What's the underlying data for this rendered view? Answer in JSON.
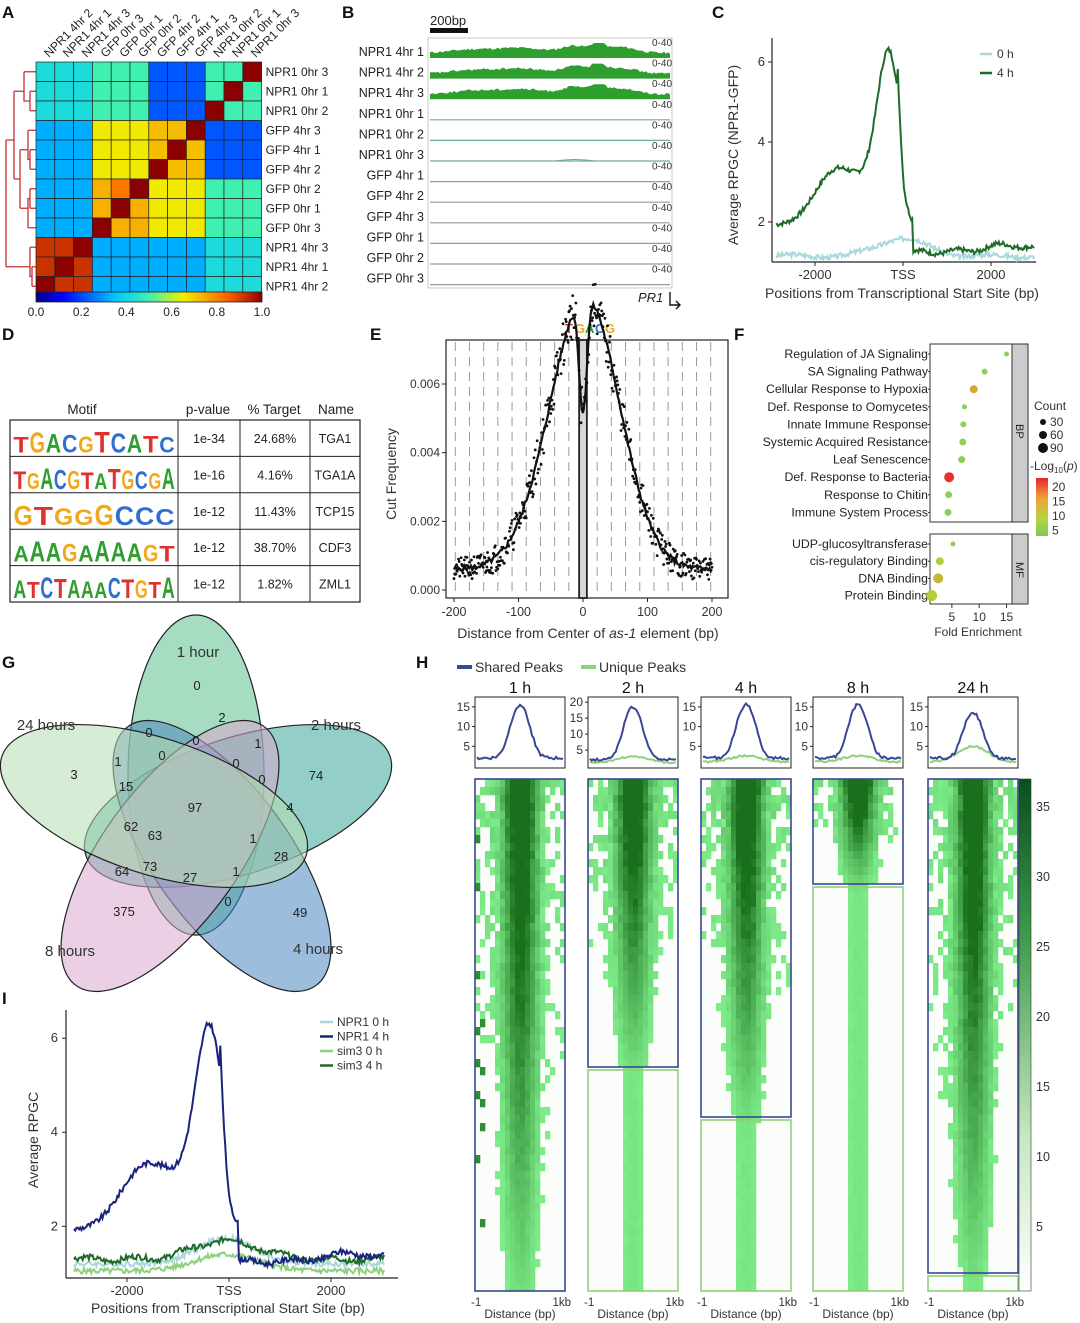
{
  "panel_letters": [
    "A",
    "B",
    "C",
    "D",
    "E",
    "F",
    "G",
    "H",
    "I"
  ],
  "panelA": {
    "samples": [
      "NPR1 0hr 3",
      "NPR1 0hr 1",
      "NPR1 0hr 2",
      "GFP 4hr 3",
      "GFP 4hr 1",
      "GFP 4hr 2",
      "GFP 0hr 2",
      "GFP 0hr 1",
      "GFP 0hr 3",
      "NPR1 4hr 3",
      "NPR1 4hr 1",
      "NPR1 4hr 2"
    ],
    "col_labels": [
      "NPR1 4hr 2",
      "NPR1 4hr 1",
      "NPR1 4hr 3",
      "GFP 0hr 3",
      "GFP 0hr 1",
      "GFP 0hr 2",
      "GFP 4hr 2",
      "GFP 4hr 1",
      "GFP 4hr 3",
      "NPR1 0hr 2",
      "NPR1 0hr 1",
      "NPR1 0hr 3"
    ],
    "colorbar_ticks": [
      "0.0",
      "0.2",
      "0.4",
      "0.6",
      "0.8",
      "1.0"
    ]
  },
  "panelB": {
    "scale_label": "200bp",
    "tracks": [
      "NPR1 4hr 1",
      "NPR1 4hr 2",
      "NPR1 4hr 3",
      "NPR1 0hr 1",
      "NPR1 0hr 2",
      "NPR1 0hr 3",
      "GFP 4hr 1",
      "GFP 4hr 2",
      "GFP 4hr 3",
      "GFP 0hr 1",
      "GFP 0hr 2",
      "GFP 0hr 3"
    ],
    "range_label": "0-40",
    "gene_label": "PR1"
  },
  "panelC": {
    "ylabel": "Average RPGC (NPR1-GFP)",
    "xlabel": "Positions from Transcriptional Start Site (bp)",
    "xticks": [
      "-2000",
      "TSS",
      "2000"
    ],
    "yticks": [
      "2",
      "4",
      "6"
    ],
    "legend": [
      "0 h",
      "4 h"
    ],
    "colors": {
      "zero": "#a8d8dc",
      "four": "#1f6b2a"
    }
  },
  "panelD": {
    "headers": [
      "Motif",
      "p-value",
      "% Target",
      "Name"
    ],
    "rows": [
      {
        "motif": "TGACGTCATC",
        "pvalue": "1e-34",
        "target": "24.68%",
        "name": "TGA1"
      },
      {
        "motif": "TGACGTATGCGA",
        "pvalue": "1e-16",
        "target": "4.16%",
        "name": "TGA1A"
      },
      {
        "motif": "GTGGGCCC",
        "pvalue": "1e-12",
        "target": "11.43%",
        "name": "TCP15"
      },
      {
        "motif": "AAAGAAAAGT",
        "pvalue": "1e-12",
        "target": "38.70%",
        "name": "CDF3"
      },
      {
        "motif": "ATCTAAACTGTA",
        "pvalue": "1e-12",
        "target": "1.82%",
        "name": "ZML1"
      }
    ]
  },
  "panelE": {
    "motif_label": "TGACG",
    "ylabel": "Cut Frequency",
    "xlabel_pre": "Distance from Center of ",
    "xlabel_em": "as-1",
    "xlabel_post": " element (bp)",
    "xticks": [
      "-200",
      "-100",
      "0",
      "100",
      "200"
    ],
    "yticks": [
      "0.000",
      "0.002",
      "0.004",
      "0.006"
    ]
  },
  "panelF": {
    "bp_terms": [
      "Regulation of JA Signaling",
      "SA Signaling Pathway",
      "Cellular Response to Hypoxia",
      "Def. Response to Oomycetes",
      "Innate Immune Response",
      "Systemic Acquired Resistance",
      "Leaf Senescence",
      "Def. Response to Bacteria",
      "Response to Chitin",
      "Immune System Process"
    ],
    "mf_terms": [
      "UDP-glucosyltransferase",
      "cis-regulatory Binding",
      "DNA Binding",
      "Protein Binding"
    ],
    "bp_label": "BP",
    "mf_label": "MF",
    "xlabel": "Fold Enrichment",
    "xticks": [
      "5",
      "10",
      "15"
    ],
    "count_title": "Count",
    "count_levels": [
      "30",
      "60",
      "90"
    ],
    "logp_title": "-Log10(p)",
    "logp_ticks": [
      "20",
      "15",
      "10",
      "5"
    ]
  },
  "panelG": {
    "set_labels": [
      "1 hour",
      "2 hours",
      "4 hours",
      "8 hours",
      "24 hours"
    ],
    "region_counts": [
      "0",
      "2",
      "0",
      "0",
      "0",
      "1",
      "74",
      "4",
      "0",
      "1",
      "28",
      "1",
      "49",
      "0",
      "27",
      "63",
      "73",
      "375",
      "64",
      "62",
      "15",
      "1",
      "3",
      "0",
      "97"
    ]
  },
  "panelH": {
    "legend": [
      "Shared Peaks",
      "Unique Peaks"
    ],
    "timepoints": [
      "1 h",
      "2 h",
      "4 h",
      "8 h",
      "24 h"
    ],
    "yticks": [
      [
        "15",
        "10",
        "5"
      ],
      [
        "20",
        "15",
        "10",
        "5"
      ],
      [
        "15",
        "10",
        "5"
      ],
      [
        "15",
        "10",
        "5"
      ],
      [
        "15",
        "10",
        "5"
      ]
    ],
    "xtick_left": "-1",
    "xtick_right": "1kb",
    "xlabel": "Distance (bp)",
    "colorbar_ticks": [
      "35",
      "30",
      "25",
      "20",
      "15",
      "10",
      "5"
    ],
    "colors": {
      "shared": "#3a4795",
      "unique": "#8fd07f"
    }
  },
  "panelI": {
    "ylabel": "Average RPGC",
    "xlabel": "Positions from Transcriptional Start Site (bp)",
    "xticks": [
      "-2000",
      "TSS",
      "2000"
    ],
    "yticks": [
      "2",
      "4",
      "6"
    ],
    "legend": [
      "NPR1 0 h",
      "NPR1 4 h",
      "sim3 0 h",
      "sim3 4 h"
    ],
    "colors": {
      "npr1_0": "#a8d8dc",
      "npr1_4": "#1c237e",
      "sim3_0": "#8fd07f",
      "sim3_4": "#1f6b2a"
    }
  }
}
